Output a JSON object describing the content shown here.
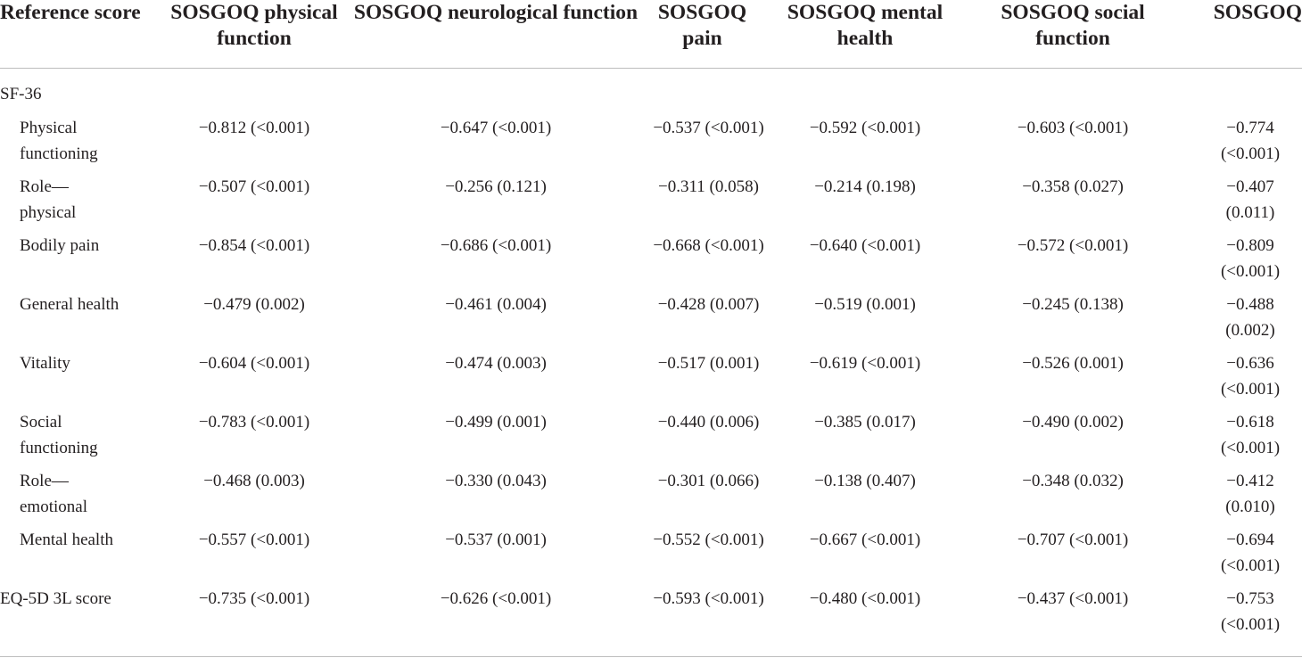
{
  "headers": [
    "Reference score",
    "SOSGOQ physical function",
    "SOSGOQ neurological function",
    "SOSGOQ pain",
    "SOSGOQ mental health",
    "SOSGOQ social function",
    "SOSGOQ"
  ],
  "section": "SF-36",
  "rows": [
    {
      "label": "Physical functioning",
      "cells": [
        "−0.812 (<0.001)",
        "−0.647 (<0.001)",
        "−0.537 (<0.001)",
        "−0.592 (<0.001)",
        "−0.603 (<0.001)",
        "−0.774 (<0.001)"
      ]
    },
    {
      "label": "Role—physical",
      "cells": [
        "−0.507 (<0.001)",
        "−0.256 (0.121)",
        "−0.311 (0.058)",
        "−0.214 (0.198)",
        "−0.358 (0.027)",
        "−0.407 (0.011)"
      ]
    },
    {
      "label": "Bodily pain",
      "cells": [
        "−0.854 (<0.001)",
        "−0.686 (<0.001)",
        "−0.668 (<0.001)",
        "−0.640 (<0.001)",
        "−0.572 (<0.001)",
        "−0.809 (<0.001)"
      ]
    },
    {
      "label": "General health",
      "cells": [
        "−0.479 (0.002)",
        "−0.461 (0.004)",
        "−0.428 (0.007)",
        "−0.519 (0.001)",
        "−0.245 (0.138)",
        "−0.488 (0.002)"
      ]
    },
    {
      "label": "Vitality",
      "cells": [
        "−0.604 (<0.001)",
        "−0.474 (0.003)",
        "−0.517 (0.001)",
        "−0.619 (<0.001)",
        "−0.526 (0.001)",
        "−0.636 (<0.001)"
      ]
    },
    {
      "label": "Social functioning",
      "cells": [
        "−0.783 (<0.001)",
        "−0.499 (0.001)",
        "−0.440 (0.006)",
        "−0.385 (0.017)",
        "−0.490 (0.002)",
        "−0.618 (<0.001)"
      ]
    },
    {
      "label": "Role—emotional",
      "cells": [
        "−0.468 (0.003)",
        "−0.330 (0.043)",
        "−0.301 (0.066)",
        "−0.138 (0.407)",
        "−0.348 (0.032)",
        "−0.412 (0.010)"
      ]
    },
    {
      "label": "Mental health",
      "cells": [
        "−0.557 (<0.001)",
        "−0.537 (0.001)",
        "−0.552 (<0.001)",
        "−0.667 (<0.001)",
        "−0.707 (<0.001)",
        "−0.694 (<0.001)"
      ]
    },
    {
      "label": "EQ-5D 3L score",
      "cells": [
        "−0.735 (<0.001)",
        "−0.626 (<0.001)",
        "−0.593 (<0.001)",
        "−0.480 (<0.001)",
        "−0.437 (<0.001)",
        "−0.753 (<0.001)"
      ]
    }
  ]
}
